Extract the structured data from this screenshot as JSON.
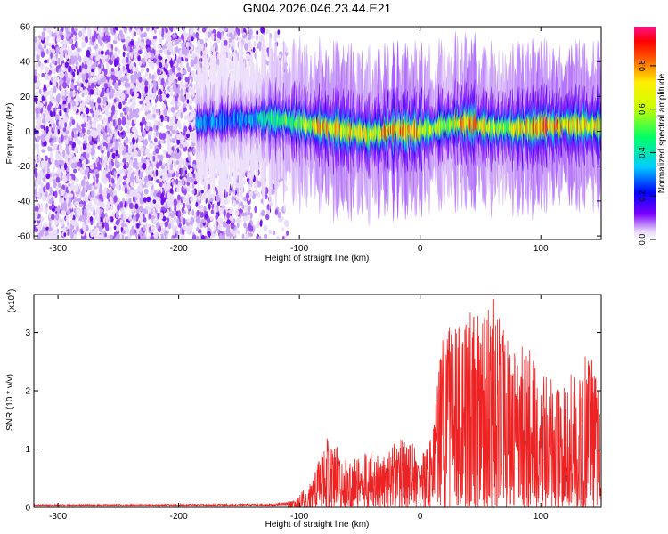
{
  "title": "GN04.2026.046.23.44.E21",
  "colors": {
    "snr_line": "#ee2222",
    "axes": "#000000"
  },
  "chart_data": [
    {
      "type": "heatmap",
      "title": "GN04.2026.046.23.44.E21",
      "xlabel": "Height of straight line (km)",
      "ylabel": "Frequency (Hz)",
      "xlim": [
        -320,
        150
      ],
      "ylim": [
        -62,
        60
      ],
      "xticks": [
        -300,
        -200,
        -100,
        0,
        100
      ],
      "yticks": [
        -60,
        -40,
        -20,
        0,
        20,
        40,
        60
      ],
      "colorbar": {
        "label": "Normalized spectral amplitude",
        "range": [
          0,
          0.98
        ],
        "ticks": [
          0,
          0.2,
          0.4,
          0.6,
          0.8
        ]
      },
      "noise_region_km": [
        -320,
        -110
      ],
      "signal_track": {
        "x_km": [
          -185,
          -160,
          -140,
          -120,
          -100,
          -80,
          -60,
          -40,
          -20,
          0,
          20,
          40,
          60,
          80,
          100,
          120,
          150
        ],
        "center_freq_hz": [
          5,
          6,
          7,
          7,
          5,
          2,
          0,
          -2,
          1,
          0,
          3,
          5,
          2,
          2,
          2,
          4,
          3
        ],
        "peak_amplitude": [
          0.35,
          0.3,
          0.35,
          0.55,
          0.6,
          0.8,
          0.75,
          0.7,
          0.9,
          0.8,
          0.6,
          0.85,
          0.65,
          0.7,
          0.9,
          0.8,
          0.75
        ]
      }
    },
    {
      "type": "line",
      "xlabel": "Height of straight line (km)",
      "ylabel": "SNR (10 * v/v)",
      "ylabel_scale": "(x10",
      "ylabel_scale_exp": "4",
      "ylabel_scale_close": ")",
      "xlim": [
        -320,
        150
      ],
      "ylim": [
        0,
        3.65
      ],
      "xticks": [
        -300,
        -200,
        -100,
        0,
        100
      ],
      "yticks": [
        0,
        1,
        2,
        3
      ],
      "envelope": {
        "x_km": [
          -320,
          -120,
          -105,
          -90,
          -75,
          -60,
          -45,
          -30,
          -20,
          -10,
          0,
          10,
          20,
          30,
          40,
          50,
          60,
          70,
          80,
          90,
          100,
          110,
          120,
          130,
          140,
          150
        ],
        "max_snr_x1e4": [
          0.05,
          0.06,
          0.12,
          0.45,
          1.3,
          0.75,
          0.95,
          0.9,
          1.15,
          1.25,
          0.85,
          1.3,
          3.2,
          3.05,
          3.35,
          3.3,
          3.65,
          3.0,
          2.65,
          2.9,
          2.3,
          2.2,
          2.2,
          2.4,
          2.7,
          1.9
        ]
      }
    }
  ]
}
